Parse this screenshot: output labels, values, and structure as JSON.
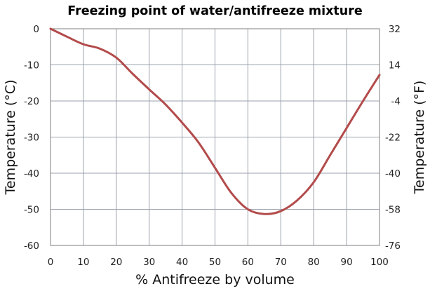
{
  "chart_data": {
    "type": "line",
    "title": "Freezing point of water/antifreeze mixture",
    "xlabel": "% Antifreeze by volume",
    "ylabel": "Temperature (°C)",
    "y2label": "Temperature (°F)",
    "xlim": [
      0,
      100
    ],
    "ylim": [
      -60,
      0
    ],
    "grid": true,
    "x_ticks": [
      "0",
      "10",
      "20",
      "30",
      "40",
      "50",
      "60",
      "70",
      "80",
      "90",
      "100"
    ],
    "y_ticks": [
      "0",
      "-10",
      "-20",
      "-30",
      "-40",
      "-50",
      "-60"
    ],
    "y2_ticks": [
      "32",
      "14",
      "-4",
      "-22",
      "-40",
      "-58",
      "-76"
    ],
    "line_color": "#b34b4b",
    "series": [
      {
        "x": [
          0,
          5,
          10,
          15,
          20,
          25,
          30,
          35,
          40,
          45,
          50,
          55,
          60,
          65,
          70,
          75,
          80,
          85,
          90,
          95,
          100
        ],
        "values": [
          0,
          -2.2,
          -4.3,
          -5.5,
          -8,
          -12.5,
          -16.8,
          -21,
          -26,
          -31.5,
          -38.5,
          -45.5,
          -50,
          -51.3,
          -50.5,
          -47.5,
          -42.5,
          -35,
          -27.5,
          -20,
          -12.8
        ]
      }
    ]
  }
}
